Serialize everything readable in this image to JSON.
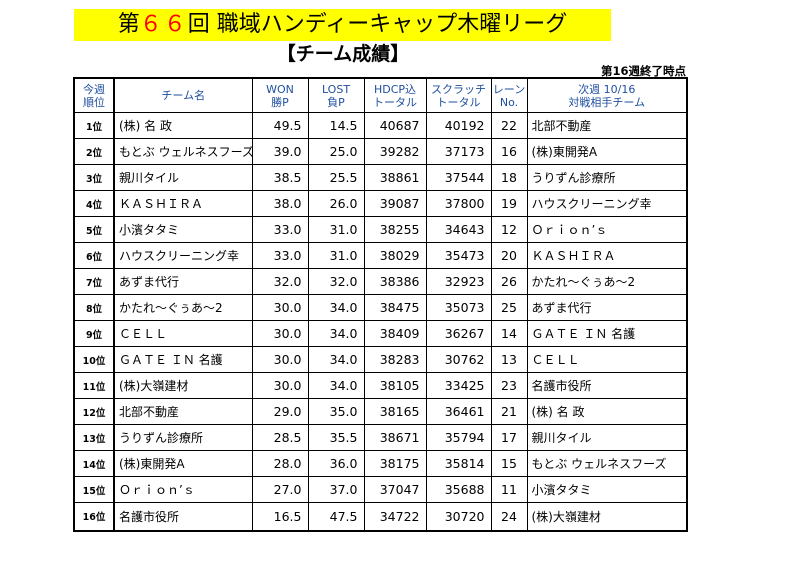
{
  "title": {
    "prefix": "第",
    "number": "６６",
    "suffix": "回 職域ハンディーキャップ木曜リーグ"
  },
  "subtitle": "【チーム成績】",
  "status": "第16週終了時点",
  "headers": [
    [
      "今週",
      "順位"
    ],
    [
      "",
      "チーム名"
    ],
    [
      "WON",
      "勝P"
    ],
    [
      "LOST",
      "負P"
    ],
    [
      "HDCP込",
      "トータル"
    ],
    [
      "スクラッチ",
      "トータル"
    ],
    [
      "レーン",
      "No."
    ],
    [
      "次週 10/16",
      "対戦相手チーム"
    ]
  ],
  "rows": [
    {
      "rank": "1位",
      "team": "(株) 名 政",
      "won": "49.5",
      "lost": "14.5",
      "hdcp": "40687",
      "scratch": "40192",
      "lane": "22",
      "opponent": "北部不動産"
    },
    {
      "rank": "2位",
      "team": "もとぶ ウェルネスフーズ",
      "won": "39.0",
      "lost": "25.0",
      "hdcp": "39282",
      "scratch": "37173",
      "lane": "16",
      "opponent": "(株)東開発A"
    },
    {
      "rank": "3位",
      "team": "親川タイル",
      "won": "38.5",
      "lost": "25.5",
      "hdcp": "38861",
      "scratch": "37544",
      "lane": "18",
      "opponent": "うりずん診療所"
    },
    {
      "rank": "4位",
      "team": "ＫＡＳＨＩＲＡ",
      "won": "38.0",
      "lost": "26.0",
      "hdcp": "39087",
      "scratch": "37800",
      "lane": "19",
      "opponent": "ハウスクリーニング幸"
    },
    {
      "rank": "5位",
      "team": "小濱タタミ",
      "won": "33.0",
      "lost": "31.0",
      "hdcp": "38255",
      "scratch": "34643",
      "lane": "12",
      "opponent": "Ｏｒｉｏｎ’ｓ"
    },
    {
      "rank": "6位",
      "team": "ハウスクリーニング幸",
      "won": "33.0",
      "lost": "31.0",
      "hdcp": "38029",
      "scratch": "35473",
      "lane": "20",
      "opponent": "ＫＡＳＨＩＲＡ"
    },
    {
      "rank": "7位",
      "team": "あずま代行",
      "won": "32.0",
      "lost": "32.0",
      "hdcp": "38386",
      "scratch": "32923",
      "lane": "26",
      "opponent": "かたれ～ぐぅあ～2"
    },
    {
      "rank": "8位",
      "team": "かたれ～ぐぅあ～2",
      "won": "30.0",
      "lost": "34.0",
      "hdcp": "38475",
      "scratch": "35073",
      "lane": "25",
      "opponent": "あずま代行"
    },
    {
      "rank": "9位",
      "team": "ＣＥＬＬ",
      "won": "30.0",
      "lost": "34.0",
      "hdcp": "38409",
      "scratch": "36267",
      "lane": "14",
      "opponent": "ＧＡＴＥ ＩＮ 名護"
    },
    {
      "rank": "10位",
      "team": "ＧＡＴＥ ＩＮ 名護",
      "won": "30.0",
      "lost": "34.0",
      "hdcp": "38283",
      "scratch": "30762",
      "lane": "13",
      "opponent": "ＣＥＬＬ"
    },
    {
      "rank": "11位",
      "team": "(株)大嶺建材",
      "won": "30.0",
      "lost": "34.0",
      "hdcp": "38105",
      "scratch": "33425",
      "lane": "23",
      "opponent": "名護市役所"
    },
    {
      "rank": "12位",
      "team": "北部不動産",
      "won": "29.0",
      "lost": "35.0",
      "hdcp": "38165",
      "scratch": "36461",
      "lane": "21",
      "opponent": "(株) 名 政"
    },
    {
      "rank": "13位",
      "team": "うりずん診療所",
      "won": "28.5",
      "lost": "35.5",
      "hdcp": "38671",
      "scratch": "35794",
      "lane": "17",
      "opponent": "親川タイル"
    },
    {
      "rank": "14位",
      "team": "(株)東開発A",
      "won": "28.0",
      "lost": "36.0",
      "hdcp": "38175",
      "scratch": "35814",
      "lane": "15",
      "opponent": "もとぶ ウェルネスフーズ"
    },
    {
      "rank": "15位",
      "team": "Ｏｒｉｏｎ’ｓ",
      "won": "27.0",
      "lost": "37.0",
      "hdcp": "37047",
      "scratch": "35688",
      "lane": "11",
      "opponent": "小濱タタミ"
    },
    {
      "rank": "16位",
      "team": "名護市役所",
      "won": "16.5",
      "lost": "47.5",
      "hdcp": "34722",
      "scratch": "30720",
      "lane": "24",
      "opponent": "(株)大嶺建材"
    }
  ],
  "colors": {
    "title_bg": "#ffff00",
    "title_number": "#ff0000",
    "header_text": "#1f4f9f"
  }
}
